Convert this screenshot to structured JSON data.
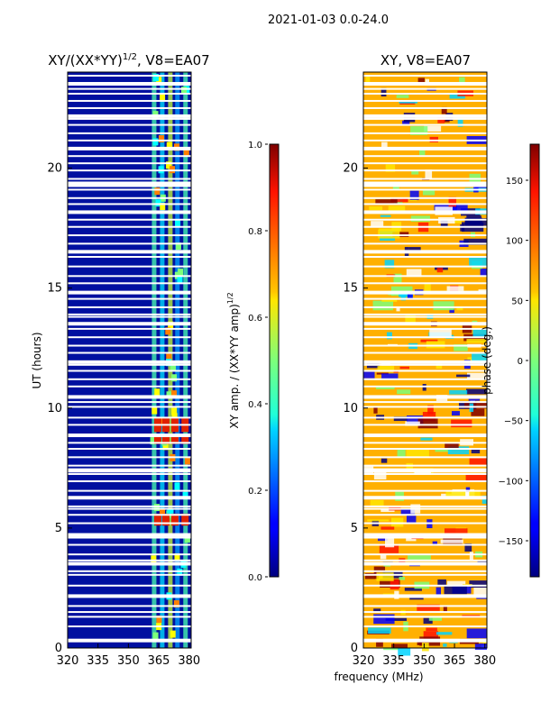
{
  "suptitle": "2021-01-03 0.0-24.0",
  "chart_data": [
    {
      "type": "heatmap",
      "title_main": "XY/(XX*YY)",
      "title_exp": "1/2",
      "title_rest": ", V8=EA07",
      "xlabel": "",
      "ylabel": "UT (hours)",
      "xlim": [
        320,
        381
      ],
      "ylim": [
        0,
        24
      ],
      "xticks": [
        320,
        335,
        350,
        365,
        380
      ],
      "yticks": [
        0,
        5,
        10,
        15,
        20
      ],
      "colorbar": {
        "label_main": "XY amp. / (XX*YY amp)",
        "label_exp": "1/2",
        "range": [
          0.0,
          1.0
        ],
        "ticks": [
          "0.0",
          "0.2",
          "0.4",
          "0.6",
          "0.8",
          "1.0"
        ],
        "colormap": "jet"
      }
    },
    {
      "type": "heatmap",
      "title": "XY, V8=EA07",
      "xlabel": "frequency (MHz)",
      "ylabel": "",
      "xlim": [
        320,
        381
      ],
      "ylim": [
        0,
        24
      ],
      "xticks": [
        320,
        335,
        350,
        365,
        380
      ],
      "yticks": [
        0,
        5,
        10,
        15,
        20
      ],
      "colorbar": {
        "label": "phase (deg.)",
        "range": [
          -180,
          180
        ],
        "ticks": [
          "−150",
          "−100",
          "−50",
          "0",
          "50",
          "100",
          "150"
        ],
        "colormap": "jet"
      }
    }
  ],
  "flagged_gaps_hours": [
    0.35,
    0.9,
    1.3,
    1.5,
    1.75,
    2.2,
    2.6,
    3.05,
    3.2,
    3.5,
    3.55,
    3.65,
    3.9,
    4.3,
    4.6,
    4.75,
    5.2,
    5.55,
    5.8,
    5.9,
    6.3,
    6.55,
    6.95,
    7.25,
    7.35,
    7.45,
    7.6,
    7.95,
    8.3,
    8.55,
    8.9,
    9.3,
    9.6,
    10.05,
    10.25,
    10.5,
    10.9,
    11.2,
    11.55,
    11.8,
    11.95,
    12.3,
    12.6,
    12.95,
    13.3,
    13.55,
    13.8,
    13.9,
    14.2,
    14.55,
    14.85,
    15.2,
    15.5,
    15.9,
    16.3,
    16.55,
    16.85,
    17.2,
    17.55,
    17.85,
    18.2,
    18.5,
    18.75,
    19.1,
    19.25,
    19.4,
    19.55,
    19.9,
    20.2,
    20.5,
    20.85,
    21.15,
    21.45,
    21.8,
    22.05,
    22.2,
    22.5,
    22.8,
    23.1,
    23.3,
    23.55,
    23.85
  ]
}
